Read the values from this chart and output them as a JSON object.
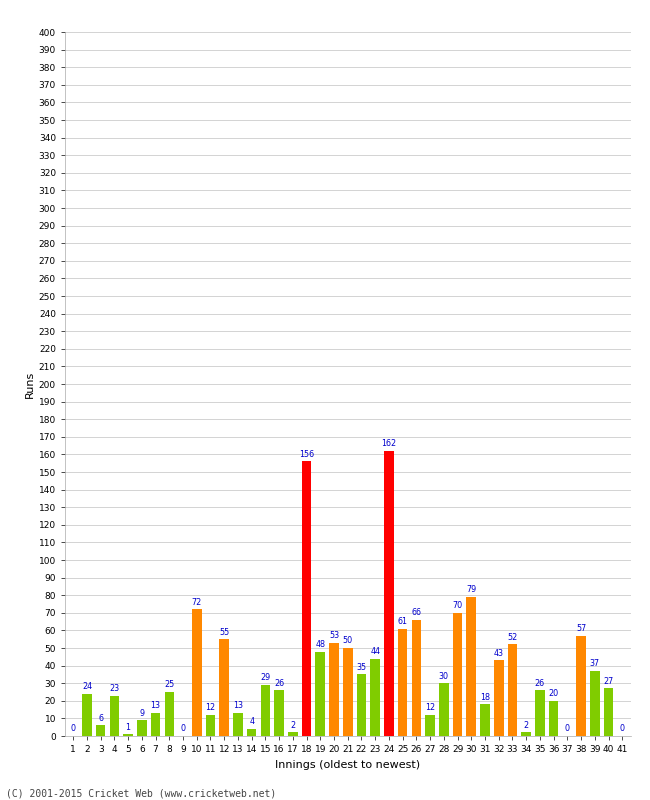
{
  "innings": [
    1,
    2,
    3,
    4,
    5,
    6,
    7,
    8,
    9,
    10,
    11,
    12,
    13,
    14,
    15,
    16,
    17,
    18,
    19,
    20,
    21,
    22,
    23,
    24,
    25,
    26,
    27,
    28,
    29,
    30,
    31,
    32,
    33,
    34,
    35,
    36,
    37,
    38,
    39,
    40,
    41
  ],
  "values": [
    0,
    24,
    6,
    23,
    1,
    9,
    13,
    25,
    0,
    72,
    12,
    55,
    13,
    4,
    29,
    26,
    2,
    156,
    48,
    53,
    50,
    35,
    44,
    162,
    61,
    66,
    12,
    30,
    70,
    79,
    18,
    43,
    52,
    2,
    26,
    20,
    0,
    57,
    37,
    27,
    0
  ],
  "colors": [
    "#80cc00",
    "#80cc00",
    "#80cc00",
    "#80cc00",
    "#80cc00",
    "#80cc00",
    "#80cc00",
    "#80cc00",
    "#80cc00",
    "#ff8800",
    "#80cc00",
    "#ff8800",
    "#80cc00",
    "#80cc00",
    "#80cc00",
    "#80cc00",
    "#80cc00",
    "#ff0000",
    "#80cc00",
    "#ff8800",
    "#ff8800",
    "#80cc00",
    "#80cc00",
    "#ff0000",
    "#ff8800",
    "#ff8800",
    "#80cc00",
    "#80cc00",
    "#ff8800",
    "#ff8800",
    "#80cc00",
    "#ff8800",
    "#ff8800",
    "#80cc00",
    "#80cc00",
    "#80cc00",
    "#80cc00",
    "#ff8800",
    "#80cc00",
    "#80cc00",
    "#80cc00"
  ],
  "xlabel": "Innings (oldest to newest)",
  "ylabel": "Runs",
  "ylim": [
    0,
    400
  ],
  "yticks": [
    0,
    10,
    20,
    30,
    40,
    50,
    60,
    70,
    80,
    90,
    100,
    110,
    120,
    130,
    140,
    150,
    160,
    170,
    180,
    190,
    200,
    210,
    220,
    230,
    240,
    250,
    260,
    270,
    280,
    290,
    300,
    310,
    320,
    330,
    340,
    350,
    360,
    370,
    380,
    390,
    400
  ],
  "bg_color": "#ffffff",
  "grid_color": "#cccccc",
  "label_color": "#0000cc",
  "label_fontsize": 5.8,
  "tick_fontsize": 6.5,
  "footer": "(C) 2001-2015 Cricket Web (www.cricketweb.net)",
  "footer_fontsize": 7
}
